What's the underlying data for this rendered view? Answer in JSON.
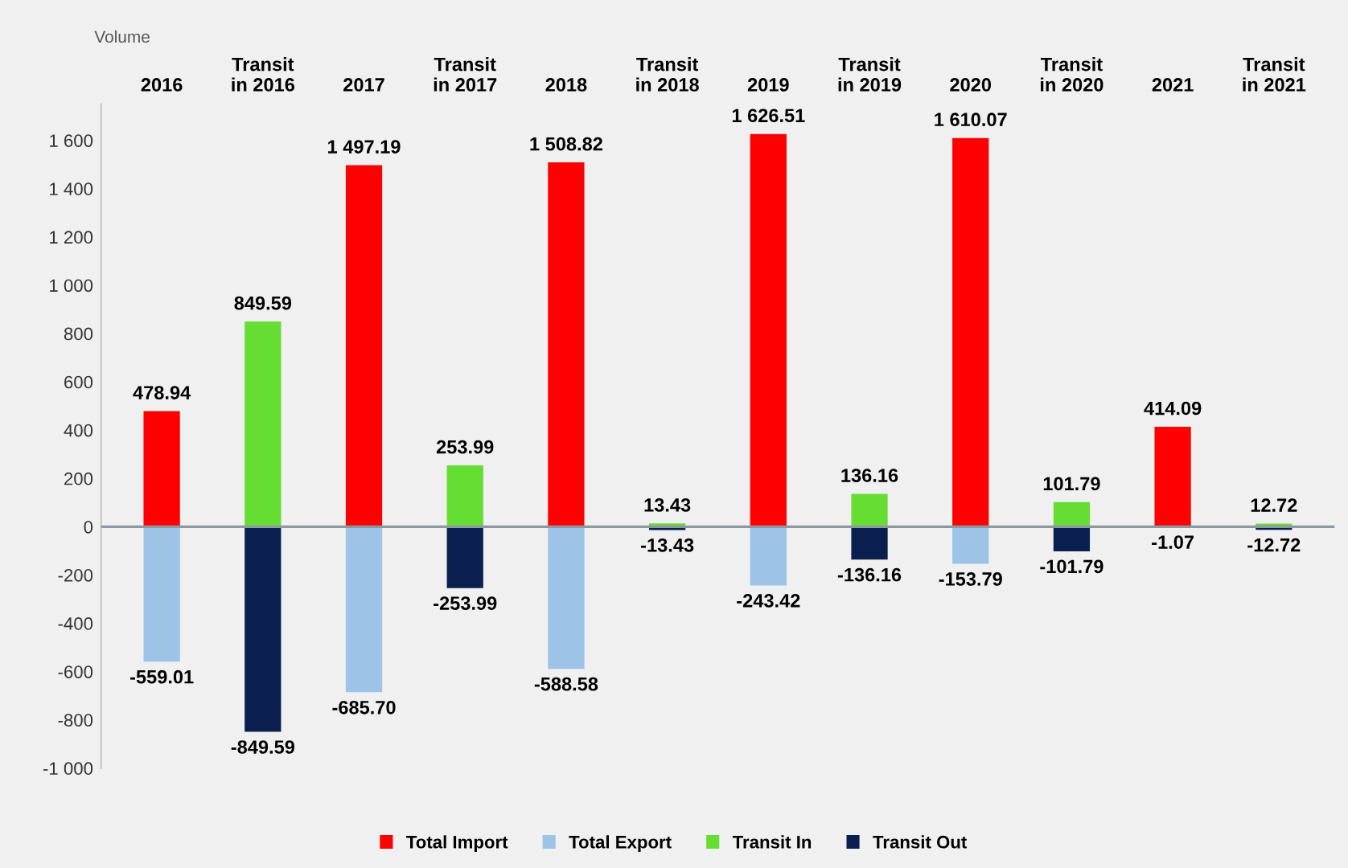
{
  "chart_data": {
    "type": "bar",
    "stacked": true,
    "ylabel": "Volume",
    "categories": [
      "2016",
      "Transit\nin 2016",
      "2017",
      "Transit\nin 2017",
      "2018",
      "Transit\nin 2018",
      "2019",
      "Transit\nin 2019",
      "2020",
      "Transit\nin 2020",
      "2021",
      "Transit\nin 2021"
    ],
    "series": [
      {
        "name": "Total Import",
        "color": "#ff0000",
        "values": [
          478.94,
          null,
          1497.19,
          null,
          1508.82,
          null,
          1626.51,
          null,
          1610.07,
          null,
          414.09,
          null
        ],
        "value_labels": [
          "478.94",
          null,
          "1 497.19",
          null,
          "1 508.82",
          null,
          "1 626.51",
          null,
          "1 610.07",
          null,
          "414.09",
          null
        ]
      },
      {
        "name": "Total Export",
        "color": "#9dc3e6",
        "values": [
          -559.01,
          null,
          -685.7,
          null,
          -588.58,
          null,
          -243.42,
          null,
          -153.79,
          null,
          -1.07,
          null
        ],
        "value_labels": [
          "-559.01",
          null,
          "-685.70",
          null,
          "-588.58",
          null,
          "-243.42",
          null,
          "-153.79",
          null,
          "-1.07",
          null
        ]
      },
      {
        "name": "Transit In",
        "color": "#66dd33",
        "values": [
          null,
          849.59,
          null,
          253.99,
          null,
          13.43,
          null,
          136.16,
          null,
          101.79,
          null,
          12.72
        ],
        "value_labels": [
          null,
          "849.59",
          null,
          "253.99",
          null,
          "13.43",
          null,
          "136.16",
          null,
          "101.79",
          null,
          "12.72"
        ]
      },
      {
        "name": "Transit Out",
        "color": "#0a1f4f",
        "values": [
          null,
          -849.59,
          null,
          -253.99,
          null,
          -13.43,
          null,
          -136.16,
          null,
          -101.79,
          null,
          -12.72
        ],
        "value_labels": [
          null,
          "-849.59",
          null,
          "-253.99",
          null,
          "-13.43",
          null,
          "-136.16",
          null,
          "-101.79",
          null,
          "-12.72"
        ]
      }
    ],
    "ylim": [
      -1000,
      1750
    ],
    "yticks": [
      {
        "value": 1600,
        "label": "1 600"
      },
      {
        "value": 1400,
        "label": "1 400"
      },
      {
        "value": 1200,
        "label": "1 200"
      },
      {
        "value": 1000,
        "label": "1 000"
      },
      800,
      600,
      400,
      200,
      0,
      -200,
      -400,
      -600,
      -800,
      {
        "value": -1000,
        "label": "-1 000"
      }
    ],
    "ref_lines": [
      {
        "axis": "y",
        "value": 0,
        "color": "#8c9aa0"
      }
    ],
    "legend": "bottom",
    "grid": false
  }
}
